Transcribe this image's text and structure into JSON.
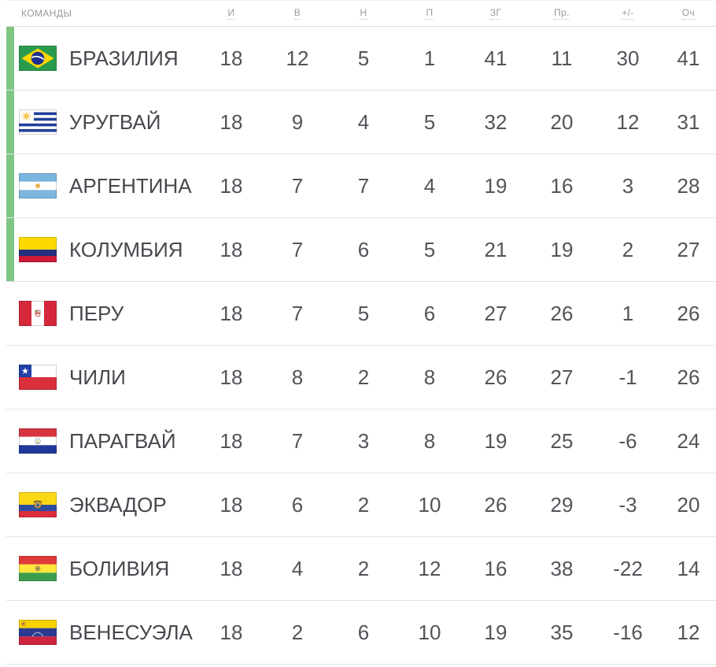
{
  "table": {
    "teams_column_label": "КОМАНДЫ",
    "stat_column_labels": [
      "И",
      "В",
      "Н",
      "П",
      "ЗГ",
      "Пр.",
      "+/-",
      "Оч"
    ],
    "qualified_rows_count": 4,
    "rows": [
      {
        "team": "БРАЗИЛИЯ",
        "flag": "brazil-flag-icon",
        "qualified": true,
        "stats": [
          "18",
          "12",
          "5",
          "1",
          "41",
          "11",
          "30",
          "41"
        ]
      },
      {
        "team": "УРУГВАЙ",
        "flag": "uruguay-flag-icon",
        "qualified": true,
        "stats": [
          "18",
          "9",
          "4",
          "5",
          "32",
          "20",
          "12",
          "31"
        ]
      },
      {
        "team": "АРГЕНТИНА",
        "flag": "argentina-flag-icon",
        "qualified": true,
        "stats": [
          "18",
          "7",
          "7",
          "4",
          "19",
          "16",
          "3",
          "28"
        ]
      },
      {
        "team": "КОЛУМБИЯ",
        "flag": "colombia-flag-icon",
        "qualified": true,
        "stats": [
          "18",
          "7",
          "6",
          "5",
          "21",
          "19",
          "2",
          "27"
        ]
      },
      {
        "team": "ПЕРУ",
        "flag": "peru-flag-icon",
        "qualified": false,
        "stats": [
          "18",
          "7",
          "5",
          "6",
          "27",
          "26",
          "1",
          "26"
        ]
      },
      {
        "team": "ЧИЛИ",
        "flag": "chile-flag-icon",
        "qualified": false,
        "stats": [
          "18",
          "8",
          "2",
          "8",
          "26",
          "27",
          "-1",
          "26"
        ]
      },
      {
        "team": "ПАРАГВАЙ",
        "flag": "paraguay-flag-icon",
        "qualified": false,
        "stats": [
          "18",
          "7",
          "3",
          "8",
          "19",
          "25",
          "-6",
          "24"
        ]
      },
      {
        "team": "ЭКВАДОР",
        "flag": "ecuador-flag-icon",
        "qualified": false,
        "stats": [
          "18",
          "6",
          "2",
          "10",
          "26",
          "29",
          "-3",
          "20"
        ]
      },
      {
        "team": "БОЛИВИЯ",
        "flag": "bolivia-flag-icon",
        "qualified": false,
        "stats": [
          "18",
          "4",
          "2",
          "12",
          "16",
          "38",
          "-22",
          "14"
        ]
      },
      {
        "team": "ВЕНЕСУЭЛА",
        "flag": "venezuela-flag-icon",
        "qualified": false,
        "stats": [
          "18",
          "2",
          "6",
          "10",
          "19",
          "35",
          "-16",
          "12"
        ]
      }
    ]
  },
  "colors": {
    "qualified_bar_green": "#80c683",
    "header_text": "#97999d",
    "team_text": "#45484d",
    "stat_text": "#515559",
    "row_divider": "#e5e5e5",
    "header_divider": "#dedede",
    "background": "#ffffff"
  }
}
